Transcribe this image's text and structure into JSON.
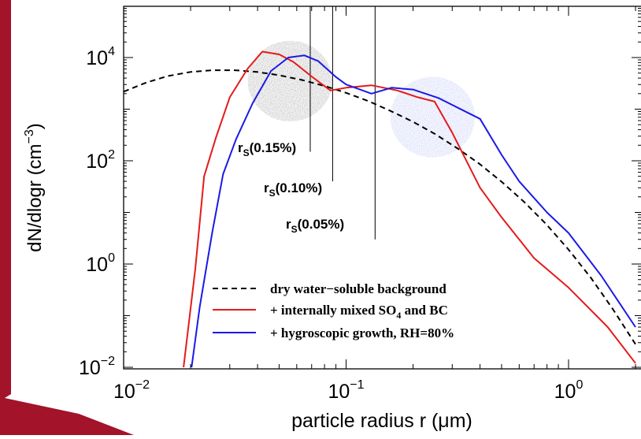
{
  "chart_data": {
    "type": "line",
    "title": "",
    "xlabel": "particle radius r (μm)",
    "ylabel": "dN/dlogr (cm⁻³)",
    "xscale": "log",
    "yscale": "log",
    "xlim": [
      0.01,
      2.0
    ],
    "ylim": [
      0.01,
      100000
    ],
    "xticks": [
      {
        "value": 0.01,
        "base": "10",
        "exp": "−2"
      },
      {
        "value": 0.1,
        "base": "10",
        "exp": "−1"
      },
      {
        "value": 1.0,
        "base": "10",
        "exp": "0"
      }
    ],
    "yticks": [
      {
        "value": 0.01,
        "base": "10",
        "exp": "−2"
      },
      {
        "value": 1,
        "base": "10",
        "exp": "0"
      },
      {
        "value": 100,
        "base": "10",
        "exp": "2"
      },
      {
        "value": 10000,
        "base": "10",
        "exp": "4"
      }
    ],
    "series": [
      {
        "name": "dry water−soluble background",
        "color": "#000000",
        "dash": "dashed",
        "points": [
          [
            0.01,
            2180
          ],
          [
            0.0126,
            3260
          ],
          [
            0.0158,
            4370
          ],
          [
            0.02,
            5250
          ],
          [
            0.0251,
            5680
          ],
          [
            0.0316,
            5680
          ],
          [
            0.0398,
            5250
          ],
          [
            0.0501,
            4540
          ],
          [
            0.0631,
            3690
          ],
          [
            0.0794,
            2840
          ],
          [
            0.1,
            2070
          ],
          [
            0.126,
            1430
          ],
          [
            0.158,
            930
          ],
          [
            0.2,
            570
          ],
          [
            0.251,
            330
          ],
          [
            0.316,
            175
          ],
          [
            0.398,
            87
          ],
          [
            0.501,
            39
          ],
          [
            0.631,
            16
          ],
          [
            0.794,
            5.9
          ],
          [
            1.0,
            1.9
          ],
          [
            1.26,
            0.54
          ],
          [
            1.58,
            0.135
          ],
          [
            2.0,
            0.028
          ]
        ]
      },
      {
        "name": "+ internally mixed SO₄ and BC",
        "color": "#e41a1a",
        "dash": "solid",
        "points": [
          [
            0.0186,
            0.01
          ],
          [
            0.021,
            0.8
          ],
          [
            0.023,
            50
          ],
          [
            0.026,
            280
          ],
          [
            0.03,
            1700
          ],
          [
            0.036,
            6000
          ],
          [
            0.042,
            13000
          ],
          [
            0.05,
            11500
          ],
          [
            0.058,
            8200
          ],
          [
            0.07,
            4300
          ],
          [
            0.085,
            2300
          ],
          [
            0.1,
            2600
          ],
          [
            0.13,
            2900
          ],
          [
            0.17,
            2300
          ],
          [
            0.21,
            1700
          ],
          [
            0.25,
            1400
          ],
          [
            0.3,
            350
          ],
          [
            0.4,
            30
          ],
          [
            0.5,
            8
          ],
          [
            0.7,
            1.3
          ],
          [
            1.0,
            0.35
          ],
          [
            1.5,
            0.06
          ],
          [
            2.0,
            0.012
          ]
        ]
      },
      {
        "name": "+ hygroscopic growth, RH=80%",
        "color": "#1a1ae6",
        "dash": "solid",
        "points": [
          [
            0.0202,
            0.01
          ],
          [
            0.022,
            0.15
          ],
          [
            0.025,
            4
          ],
          [
            0.028,
            55
          ],
          [
            0.032,
            260
          ],
          [
            0.038,
            1300
          ],
          [
            0.046,
            5500
          ],
          [
            0.055,
            10000
          ],
          [
            0.065,
            11000
          ],
          [
            0.075,
            8500
          ],
          [
            0.09,
            4200
          ],
          [
            0.1,
            3000
          ],
          [
            0.13,
            2000
          ],
          [
            0.16,
            2600
          ],
          [
            0.2,
            2400
          ],
          [
            0.26,
            1650
          ],
          [
            0.4,
            650
          ],
          [
            0.5,
            130
          ],
          [
            0.6,
            40
          ],
          [
            0.8,
            10
          ],
          [
            1.0,
            4
          ],
          [
            1.4,
            0.6
          ],
          [
            2.0,
            0.06
          ]
        ]
      }
    ],
    "annotations": [
      {
        "id": "rs015",
        "base": "r",
        "sub": "S",
        "text": "(0.15%)",
        "x": 0.069,
        "line_y": [
          150,
          100000
        ]
      },
      {
        "id": "rs010",
        "base": "r",
        "sub": "S",
        "text": "(0.10%)",
        "x": 0.087,
        "line_y": [
          40,
          100000
        ]
      },
      {
        "id": "rs005",
        "base": "r",
        "sub": "S",
        "text": "(0.05%)",
        "x": 0.135,
        "line_y": [
          3,
          100000
        ]
      }
    ],
    "shaded_circles": [
      {
        "id": "gray",
        "color": "#555555",
        "cx": 0.056,
        "cy": 3500,
        "rx_decades": 0.19,
        "ry_decades": 0.78
      },
      {
        "id": "blue",
        "color": "#8090ee",
        "cx": 0.245,
        "cy": 700,
        "rx_decades": 0.19,
        "ry_decades": 0.78
      }
    ],
    "legend": {
      "position": "bottom-center"
    },
    "grid": false
  },
  "legend": {
    "item0": "dry water−soluble background",
    "item1_pre": "+ internally mixed SO",
    "item1_sub": "4",
    "item1_post": " and BC",
    "item2": "+ hygroscopic growth, RH=80%"
  },
  "decoration": {
    "slide_color": "#a3132a"
  }
}
